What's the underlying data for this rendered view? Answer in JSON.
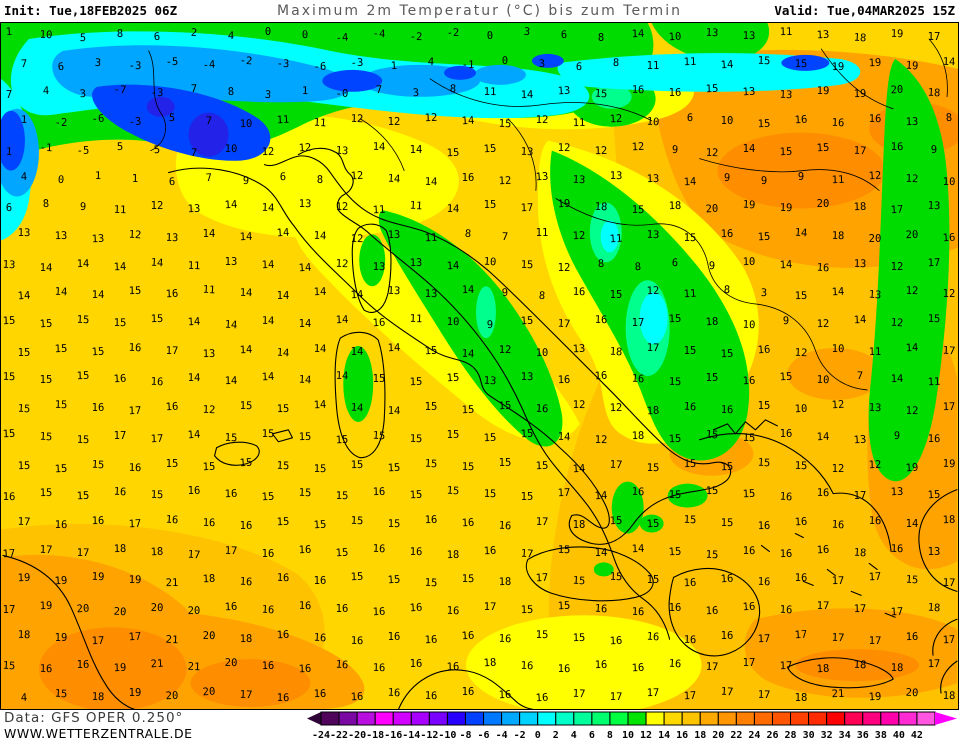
{
  "header": {
    "init_label": "Init: Tue,18FEB2025 06Z",
    "title": "Maximum 2m Temperatur (°C) bis zum Termin",
    "valid_label": "Valid: Tue,04MAR2025 15Z"
  },
  "footer": {
    "data_source": "Data: GFS OPER 0.250°",
    "website": "WWW.WETTERZENTRALE.DE"
  },
  "colorbar": {
    "unit": "°C",
    "tick_labels": [
      "-24",
      "-22",
      "-20",
      "-18",
      "-16",
      "-14",
      "-12",
      "-10",
      "-8",
      "-6",
      "-4",
      "-2",
      "0",
      "2",
      "4",
      "6",
      "8",
      "10",
      "12",
      "14",
      "16",
      "18",
      "20",
      "22",
      "24",
      "26",
      "28",
      "30",
      "32",
      "34",
      "36",
      "38",
      "40",
      "42"
    ],
    "left_arrow_color": "#2e0338",
    "right_arrow_color": "#ff00ff",
    "segment_colors": [
      "#50045c",
      "#7c08a4",
      "#b80ee0",
      "#ff00ff",
      "#d100ff",
      "#a800ff",
      "#7a00ff",
      "#2800ff",
      "#0041ff",
      "#0078ff",
      "#00a8ff",
      "#00d2ff",
      "#00ffff",
      "#00ffc8",
      "#00ff9b",
      "#00ff6e",
      "#00ff41",
      "#00e400",
      "#ffff00",
      "#ffd800",
      "#ffc400",
      "#ffaa00",
      "#ff9500",
      "#ff8000",
      "#ff6b00",
      "#ff5500",
      "#ff4000",
      "#ff2a00",
      "#ff0000",
      "#ff0055",
      "#ff0080",
      "#ff00aa",
      "#ff2ad4",
      "#ff55e0"
    ]
  },
  "map": {
    "palette": {
      "gold": "#ffd600",
      "amber": "#ffc200",
      "orange": "#ffa300",
      "deep_orange": "#ff8d00",
      "yellow": "#ffff00",
      "green": "#00dc00",
      "spring_green": "#00ff8c",
      "cyan": "#00ffff",
      "light_blue": "#00a6ff",
      "blue": "#0044ff",
      "dark_blue": "#2222e8",
      "coastline": "#000000"
    },
    "temperature_rows": [
      "1 10 5 8 6 2 4 0 0 -4 -4 -2 -2 0 3 6 8 14 10 13 13 11 13 18 19 17",
      "7 6 3 -3 -5 -4 -2 -3 -6 -3 1 4 -1 0 3 6 8 11 11 14 15 15 19 19 19 14",
      "7 4 3 -7 -3 7 8 3 1 -0 7 3 8 11 14 13 15 16 16 15 13 13 19 19 20 18",
      "1 -2 -6 -3 5 7 10 11 11 12 12 12 14 15 12 11 12 10 6 10 15 16 16 16 13 8",
      "1 -1 -5 5 5 7 10 12 12 13 14 14 15 15 13 12 12 12 9 12 14 15 15 17 16 9",
      "4 0 1 1 6 7 9 6 8 12 14 14 16 12 13 13 13 13 14 9 9 9 11 12 12 10",
      "6 8 9 11 12 13 14 14 13 12 11 11 14 15 17 19 18 15 18 20 19 19 20 18 17 13",
      "13 13 13 12 13 14 14 14 14 12 13 11 8 7 11 12 11 13 15 16 15 14 18 20 20 16",
      "13 14 14 14 14 11 13 14 14 12 13 13 14 10 15 12 8 8 6 9 10 14 16 13 12 17",
      "14 14 14 15 16 11 14 14 14 14 13 13 14 9 8 16 15 12 11 8 3 15 14 13 12 12",
      "15 15 15 15 15 14 14 14 14 14 16 11 10 9 15 17 16 17 15 18 10 9 12 14 12 15",
      "15 15 15 16 17 13 14 14 14 14 14 15 14 12 10 13 18 17 15 15 16 12 10 11 14 17",
      "15 15 15 16 16 14 14 14 14 14 15 15 15 13 13 16 16 16 15 15 16 15 10 7 14 11",
      "15 15 16 17 16 12 15 15 14 14 14 15 15 15 16 12 12 18 16 16 15 10 12 13 12 17",
      "15 15 15 17 17 14 15 15 15 15 15 15 15 15 15 14 12 18 15 15 15 16 14 13 9 16",
      "15 15 15 16 15 15 15 15 15 15 15 15 15 15 15 14 17 15 15 15 15 15 12 12 19 19",
      "16 15 15 16 15 16 16 15 15 15 16 15 15 15 15 17 14 16 15 15 15 16 16 17 13 15",
      "17 16 16 17 16 16 16 15 15 15 15 16 16 16 17 18 15 15 15 15 16 16 16 16 14 18",
      "17 17 17 18 18 17 17 16 16 15 16 16 18 16 17 15 14 14 15 15 16 16 16 18 16 13",
      "19 19 19 19 21 18 16 16 16 15 15 15 15 18 17 15 15 15 16 16 16 16 17 17 15 17",
      "17 19 20 20 20 20 16 16 16 16 16 16 16 17 15 15 16 16 16 16 16 16 17 17 17 18",
      "18 19 17 17 21 20 18 16 16 16 16 16 16 16 15 15 16 16 16 16 17 17 17 17 16 17",
      "15 16 16 19 21 21 20 16 16 16 16 16 16 18 16 16 16 16 16 17 17 17 18 18 18 17",
      "4 15 18 19 20 20 17 16 16 16 16 16 16 16 16 17 17 17 17 17 17 18 21 19 20 18"
    ]
  }
}
